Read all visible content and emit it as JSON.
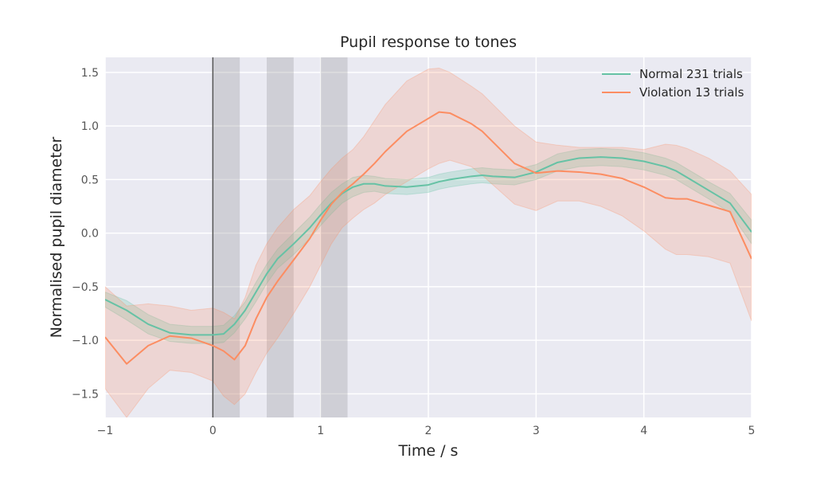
{
  "chart_data": {
    "type": "line",
    "title": "Pupil response to tones",
    "xlabel": "Time / s",
    "ylabel": "Normalised pupil diameter",
    "xlim": [
      -1,
      5
    ],
    "ylim": [
      -1.72,
      1.64
    ],
    "xticks": [
      -1,
      0,
      1,
      2,
      3,
      4,
      5
    ],
    "xtick_labels": [
      "−1",
      "0",
      "1",
      "2",
      "3",
      "4",
      "5"
    ],
    "yticks": [
      -1.5,
      -1.0,
      -0.5,
      0.0,
      0.5,
      1.0,
      1.5
    ],
    "ytick_labels": [
      "−1.5",
      "−1.0",
      "−0.5",
      "0.0",
      "0.5",
      "1.0",
      "1.5"
    ],
    "grid": true,
    "legend_position": "top-right",
    "vertical_line": 0,
    "shaded_spans": [
      [
        0,
        0.25
      ],
      [
        0.5,
        0.75
      ],
      [
        1.0,
        1.25
      ]
    ],
    "x": [
      -1.0,
      -0.8,
      -0.6,
      -0.4,
      -0.2,
      0.0,
      0.1,
      0.2,
      0.3,
      0.4,
      0.5,
      0.6,
      0.75,
      0.9,
      1.0,
      1.1,
      1.2,
      1.3,
      1.4,
      1.5,
      1.6,
      1.8,
      2.0,
      2.1,
      2.2,
      2.4,
      2.5,
      2.6,
      2.8,
      3.0,
      3.2,
      3.4,
      3.6,
      3.8,
      4.0,
      4.2,
      4.3,
      4.4,
      4.6,
      4.8,
      5.0
    ],
    "series": [
      {
        "name": "Normal 231 trials",
        "color": "#66c2a5",
        "values": [
          -0.62,
          -0.72,
          -0.85,
          -0.93,
          -0.95,
          -0.95,
          -0.94,
          -0.85,
          -0.72,
          -0.55,
          -0.38,
          -0.24,
          -0.1,
          0.05,
          0.17,
          0.28,
          0.37,
          0.43,
          0.46,
          0.46,
          0.44,
          0.43,
          0.45,
          0.48,
          0.5,
          0.53,
          0.54,
          0.53,
          0.52,
          0.57,
          0.66,
          0.7,
          0.71,
          0.7,
          0.67,
          0.62,
          0.58,
          0.52,
          0.4,
          0.28,
          0.01
        ],
        "upper": [
          -0.55,
          -0.63,
          -0.76,
          -0.85,
          -0.87,
          -0.87,
          -0.86,
          -0.77,
          -0.64,
          -0.46,
          -0.29,
          -0.15,
          0.0,
          0.15,
          0.27,
          0.38,
          0.46,
          0.52,
          0.54,
          0.53,
          0.51,
          0.5,
          0.52,
          0.55,
          0.57,
          0.6,
          0.61,
          0.6,
          0.59,
          0.64,
          0.74,
          0.78,
          0.79,
          0.78,
          0.75,
          0.7,
          0.66,
          0.6,
          0.48,
          0.37,
          0.12
        ],
        "lower": [
          -0.69,
          -0.81,
          -0.94,
          -1.01,
          -1.03,
          -1.03,
          -1.02,
          -0.93,
          -0.8,
          -0.64,
          -0.47,
          -0.33,
          -0.2,
          -0.05,
          0.07,
          0.18,
          0.28,
          0.34,
          0.38,
          0.39,
          0.37,
          0.36,
          0.38,
          0.41,
          0.43,
          0.46,
          0.47,
          0.46,
          0.45,
          0.5,
          0.58,
          0.62,
          0.63,
          0.62,
          0.59,
          0.54,
          0.5,
          0.44,
          0.32,
          0.19,
          -0.1
        ]
      },
      {
        "name": "Violation 13 trials",
        "color": "#fc8d62",
        "values": [
          -0.97,
          -1.22,
          -1.05,
          -0.96,
          -0.98,
          -1.05,
          -1.1,
          -1.18,
          -1.05,
          -0.8,
          -0.6,
          -0.45,
          -0.25,
          -0.05,
          0.12,
          0.27,
          0.38,
          0.46,
          0.55,
          0.65,
          0.76,
          0.95,
          1.07,
          1.13,
          1.12,
          1.02,
          0.95,
          0.85,
          0.65,
          0.56,
          0.58,
          0.57,
          0.55,
          0.51,
          0.43,
          0.33,
          0.32,
          0.32,
          0.26,
          0.2,
          -0.24
        ],
        "upper": [
          -0.5,
          -0.68,
          -0.66,
          -0.68,
          -0.72,
          -0.7,
          -0.74,
          -0.8,
          -0.6,
          -0.3,
          -0.1,
          0.05,
          0.22,
          0.35,
          0.48,
          0.6,
          0.7,
          0.78,
          0.9,
          1.05,
          1.2,
          1.42,
          1.53,
          1.54,
          1.5,
          1.37,
          1.3,
          1.2,
          1.0,
          0.85,
          0.82,
          0.8,
          0.8,
          0.8,
          0.78,
          0.83,
          0.82,
          0.79,
          0.7,
          0.58,
          0.36
        ],
        "lower": [
          -1.45,
          -1.72,
          -1.45,
          -1.28,
          -1.3,
          -1.38,
          -1.52,
          -1.6,
          -1.5,
          -1.3,
          -1.12,
          -0.98,
          -0.75,
          -0.5,
          -0.3,
          -0.1,
          0.05,
          0.14,
          0.22,
          0.28,
          0.36,
          0.48,
          0.6,
          0.65,
          0.68,
          0.62,
          0.54,
          0.45,
          0.27,
          0.21,
          0.3,
          0.3,
          0.25,
          0.16,
          0.02,
          -0.15,
          -0.2,
          -0.2,
          -0.22,
          -0.28,
          -0.82
        ]
      }
    ]
  }
}
